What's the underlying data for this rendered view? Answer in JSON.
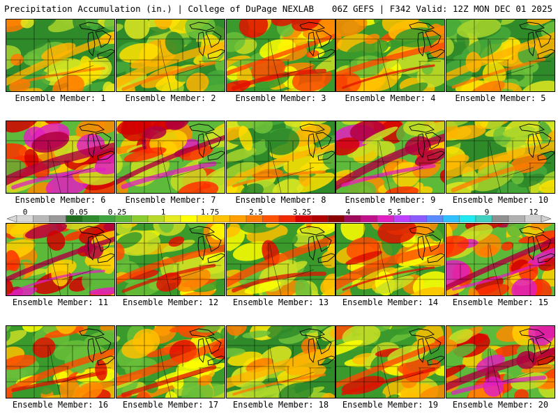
{
  "header": {
    "left_title": "Precipitation Accumulation (in.) | College of DuPage NEXLAB",
    "right_title": "06Z GEFS | F342 Valid: 12Z MON DEC 01 2025"
  },
  "colorbar": {
    "tick_labels": [
      "0",
      "0.05",
      "0.25",
      "1",
      "1.75",
      "2.5",
      "3.25",
      "4",
      "5.5",
      "7",
      "9",
      "12"
    ],
    "colors": [
      "#d9d9d9",
      "#b8b8b8",
      "#999999",
      "#1f6f1f",
      "#2e8b2e",
      "#3fa33f",
      "#5dba3a",
      "#8acb2f",
      "#b8d928",
      "#e6ea20",
      "#ffff00",
      "#ffe000",
      "#ffc200",
      "#ffa000",
      "#ff7a00",
      "#ff5200",
      "#f02a00",
      "#d40000",
      "#b00000",
      "#8a0000",
      "#9e0a5a",
      "#c0108a",
      "#e020c0",
      "#c040ff",
      "#8a5cff",
      "#5a8cff",
      "#30c0ff",
      "#20e8f0",
      "#40d0c0",
      "#909090",
      "#b0b0b0",
      "#d0d0d0"
    ]
  },
  "panels": [
    {
      "member": 1,
      "label": "Ensemble Member: 1",
      "palette": "light"
    },
    {
      "member": 2,
      "label": "Ensemble Member: 2",
      "palette": "light"
    },
    {
      "member": 3,
      "label": "Ensemble Member: 3",
      "palette": "medium"
    },
    {
      "member": 4,
      "label": "Ensemble Member: 4",
      "palette": "medium"
    },
    {
      "member": 5,
      "label": "Ensemble Member: 5",
      "palette": "light"
    },
    {
      "member": 6,
      "label": "Ensemble Member: 6",
      "palette": "heavy"
    },
    {
      "member": 7,
      "label": "Ensemble Member: 7",
      "palette": "heavy"
    },
    {
      "member": 8,
      "label": "Ensemble Member: 8",
      "palette": "light"
    },
    {
      "member": 9,
      "label": "Ensemble Member: 9",
      "palette": "heavy"
    },
    {
      "member": 10,
      "label": "Ensemble Member: 10",
      "palette": "light"
    },
    {
      "member": 11,
      "label": "Ensemble Member: 11",
      "palette": "heavy"
    },
    {
      "member": 12,
      "label": "Ensemble Member: 12",
      "palette": "medium"
    },
    {
      "member": 13,
      "label": "Ensemble Member: 13",
      "palette": "medium"
    },
    {
      "member": 14,
      "label": "Ensemble Member: 14",
      "palette": "medium"
    },
    {
      "member": 15,
      "label": "Ensemble Member: 15",
      "palette": "heavy"
    },
    {
      "member": 16,
      "label": "Ensemble Member: 16",
      "palette": "medium"
    },
    {
      "member": 17,
      "label": "Ensemble Member: 17",
      "palette": "medium"
    },
    {
      "member": 18,
      "label": "Ensemble Member: 18",
      "palette": "light"
    },
    {
      "member": 19,
      "label": "Ensemble Member: 19",
      "palette": "medium"
    },
    {
      "member": 20,
      "label": "Ensemble Member: 20",
      "palette": "heavy"
    }
  ]
}
